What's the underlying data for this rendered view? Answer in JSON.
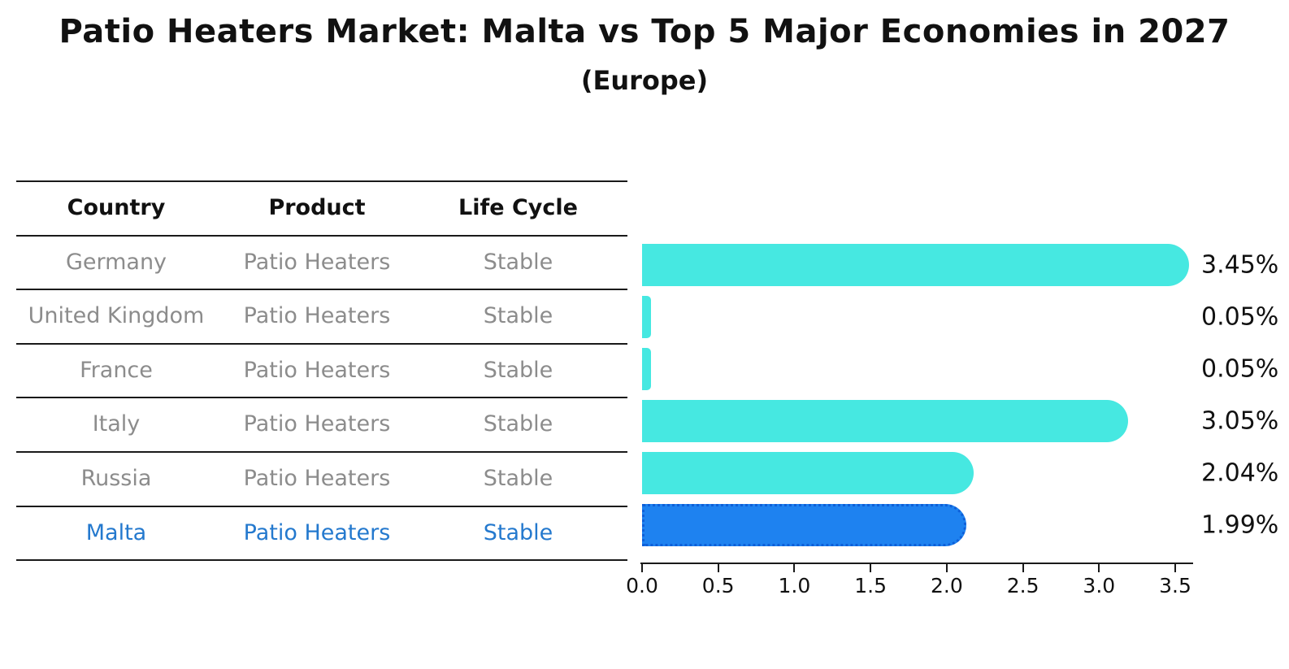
{
  "title": "Patio Heaters Market: Malta vs Top 5 Major Economies in 2027",
  "subtitle": "(Europe)",
  "table": {
    "headers": [
      "Country",
      "Product",
      "Life Cycle"
    ],
    "rows": [
      {
        "country": "Germany",
        "product": "Patio Heaters",
        "life_cycle": "Stable",
        "highlight": false
      },
      {
        "country": "United Kingdom",
        "product": "Patio Heaters",
        "life_cycle": "Stable",
        "highlight": false
      },
      {
        "country": "France",
        "product": "Patio Heaters",
        "life_cycle": "Stable",
        "highlight": false
      },
      {
        "country": "Italy",
        "product": "Patio Heaters",
        "life_cycle": "Stable",
        "highlight": false
      },
      {
        "country": "Russia",
        "product": "Patio Heaters",
        "life_cycle": "Stable",
        "highlight": false
      },
      {
        "country": "Malta",
        "product": "Patio Heaters",
        "life_cycle": "Stable",
        "highlight": true
      }
    ]
  },
  "chart_data": {
    "type": "bar",
    "orientation": "horizontal",
    "title": "Patio Heaters Market: Malta vs Top 5 Major Economies in 2027",
    "subtitle": "(Europe)",
    "categories": [
      "Germany",
      "United Kingdom",
      "France",
      "Italy",
      "Russia",
      "Malta"
    ],
    "values": [
      3.45,
      0.05,
      0.05,
      3.05,
      2.04,
      1.99
    ],
    "value_labels": [
      "3.45%",
      "0.05%",
      "0.05%",
      "3.05%",
      "2.04%",
      "1.99%"
    ],
    "xlim": [
      0,
      3.5
    ],
    "xticks": [
      0.0,
      0.5,
      1.0,
      1.5,
      2.0,
      2.5,
      3.0,
      3.5
    ],
    "xtick_labels": [
      "0.0",
      "0.5",
      "1.0",
      "1.5",
      "2.0",
      "2.5",
      "3.0",
      "3.5"
    ],
    "highlight_category": "Malta",
    "grid": false,
    "legend": false
  },
  "colors": {
    "bar": "#46E8E1",
    "highlight_bar": "#1E82F0",
    "highlight_border": "#0E5FD8",
    "text": "#111111",
    "muted_row_text": "#8c8c8c",
    "highlight_text": "#2479CE",
    "line": "#1a1a1a"
  }
}
